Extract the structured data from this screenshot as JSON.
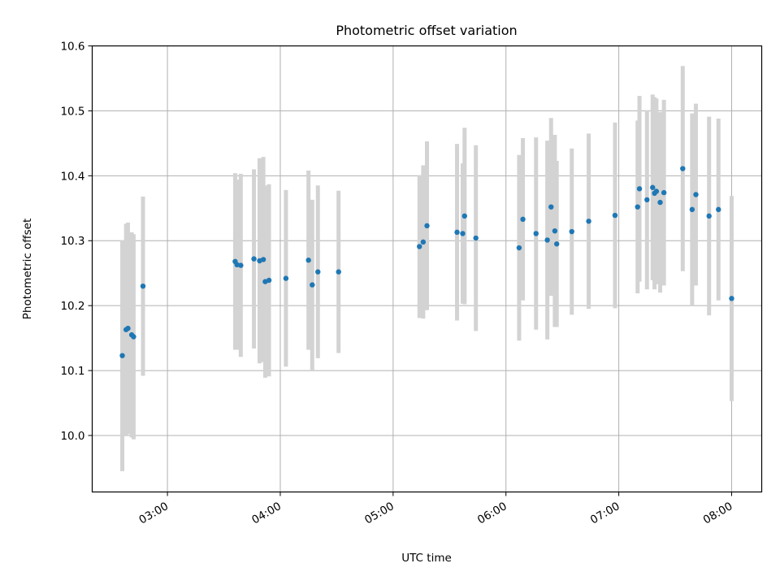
{
  "chart_data": {
    "type": "scatter",
    "title": "Photometric offset variation",
    "xlabel": "UTC time",
    "ylabel": "Photometric offset",
    "xlim": [
      "02:20",
      "08:16"
    ],
    "ylim": [
      9.913,
      10.6
    ],
    "x_ticks": [
      "03:00",
      "04:00",
      "05:00",
      "06:00",
      "07:00",
      "08:00"
    ],
    "y_ticks": [
      "10.0",
      "10.1",
      "10.2",
      "10.3",
      "10.4",
      "10.5",
      "10.6"
    ],
    "grid": true,
    "colors": {
      "point": "#1f77b4",
      "errorbar": "#d3d3d3",
      "grid": "#b0b0b0"
    },
    "series": [
      {
        "x": [
          "02:36",
          "02:38",
          "02:39",
          "02:41",
          "02:42",
          "02:47",
          "03:36",
          "03:37",
          "03:39",
          "03:46",
          "03:49",
          "03:51",
          "03:52",
          "03:54",
          "04:03",
          "04:15",
          "04:17",
          "04:20",
          "04:31",
          "05:14",
          "05:16",
          "05:18",
          "05:34",
          "05:37",
          "05:38",
          "05:44",
          "06:07",
          "06:09",
          "06:16",
          "06:22",
          "06:24",
          "06:26",
          "06:27",
          "06:35",
          "06:44",
          "06:58",
          "07:10",
          "07:11",
          "07:15",
          "07:18",
          "07:19",
          "07:20",
          "07:22",
          "07:24",
          "07:34",
          "07:39",
          "07:41",
          "07:48",
          "07:53",
          "08:00"
        ],
        "y": [
          10.123,
          10.163,
          10.165,
          10.155,
          10.152,
          10.23,
          10.268,
          10.263,
          10.262,
          10.272,
          10.269,
          10.271,
          10.237,
          10.239,
          10.242,
          10.27,
          10.232,
          10.252,
          10.252,
          10.291,
          10.298,
          10.323,
          10.313,
          10.311,
          10.338,
          10.304,
          10.289,
          10.333,
          10.311,
          10.301,
          10.352,
          10.315,
          10.295,
          10.314,
          10.33,
          10.339,
          10.352,
          10.38,
          10.363,
          10.382,
          10.373,
          10.376,
          10.359,
          10.374,
          10.411,
          10.348,
          10.371,
          10.338,
          10.348,
          10.211
        ],
        "yerr": [
          0.178,
          0.163,
          0.163,
          0.158,
          0.158,
          0.138,
          0.136,
          0.131,
          0.141,
          0.138,
          0.158,
          0.158,
          0.148,
          0.148,
          0.136,
          0.138,
          0.131,
          0.133,
          0.125,
          0.11,
          0.118,
          0.13,
          0.136,
          0.108,
          0.136,
          0.143,
          0.143,
          0.125,
          0.148,
          0.153,
          0.137,
          0.148,
          0.128,
          0.128,
          0.135,
          0.143,
          0.133,
          0.143,
          0.138,
          0.143,
          0.148,
          0.143,
          0.139,
          0.143,
          0.158,
          0.148,
          0.14,
          0.153,
          0.14,
          0.158
        ]
      }
    ]
  }
}
